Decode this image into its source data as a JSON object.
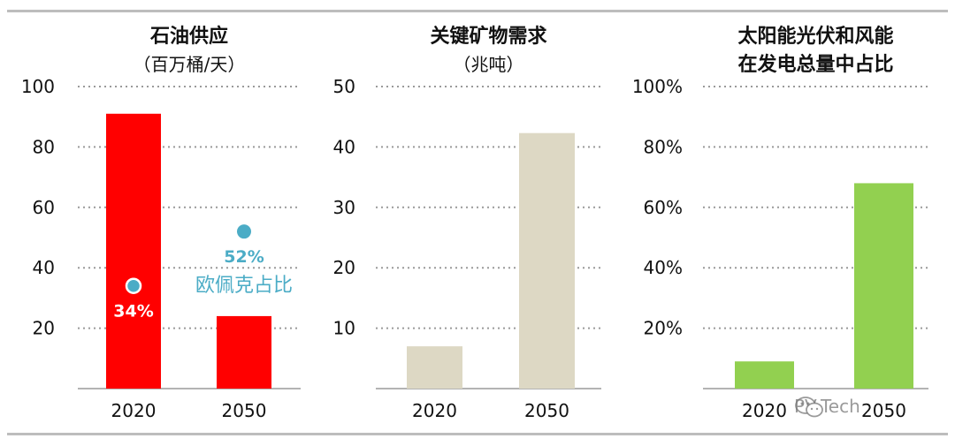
{
  "colors": {
    "oil": "#ff0000",
    "minerals": "#ddd8c4",
    "renewables": "#92d050",
    "annotation": "#4bacc6",
    "annotation_on_bar": "#ffffff"
  },
  "chart_data": [
    {
      "type": "bar",
      "title": "石油供应",
      "subtitle": "（百万桶/天）",
      "categories": [
        "2020",
        "2050"
      ],
      "values": [
        91,
        24
      ],
      "ylim": [
        0,
        100
      ],
      "yticks": [
        "20",
        "40",
        "60",
        "80",
        "100"
      ],
      "ytick_values": [
        20,
        40,
        60,
        80,
        100
      ],
      "grid": true,
      "color": "#ff0000",
      "annotations": [
        {
          "category": "2020",
          "marker_value": 34,
          "text": "34%",
          "label": ""
        },
        {
          "category": "2050",
          "marker_value": 52,
          "text": "52%",
          "label": "欧佩克占比"
        }
      ]
    },
    {
      "type": "bar",
      "title": "关键矿物需求",
      "subtitle": "（兆吨）",
      "categories": [
        "2020",
        "2050"
      ],
      "values": [
        7,
        42.3
      ],
      "ylim": [
        0,
        50
      ],
      "yticks": [
        "10",
        "20",
        "30",
        "40",
        "50"
      ],
      "ytick_values": [
        10,
        20,
        30,
        40,
        50
      ],
      "grid": true,
      "color": "#ddd8c4"
    },
    {
      "type": "bar",
      "title": "太阳能光伏和风能",
      "subtitle": "在发电总量中占比",
      "categories": [
        "2020",
        "2050"
      ],
      "values": [
        9,
        68
      ],
      "ylim": [
        0,
        100
      ],
      "yticks": [
        "20%",
        "40%",
        "60%",
        "80%",
        "100%"
      ],
      "ytick_values": [
        20,
        40,
        60,
        80,
        100
      ],
      "grid": true,
      "color": "#92d050"
    }
  ],
  "watermark": {
    "icon": "wechat-icon",
    "text": "PV-Tech"
  }
}
